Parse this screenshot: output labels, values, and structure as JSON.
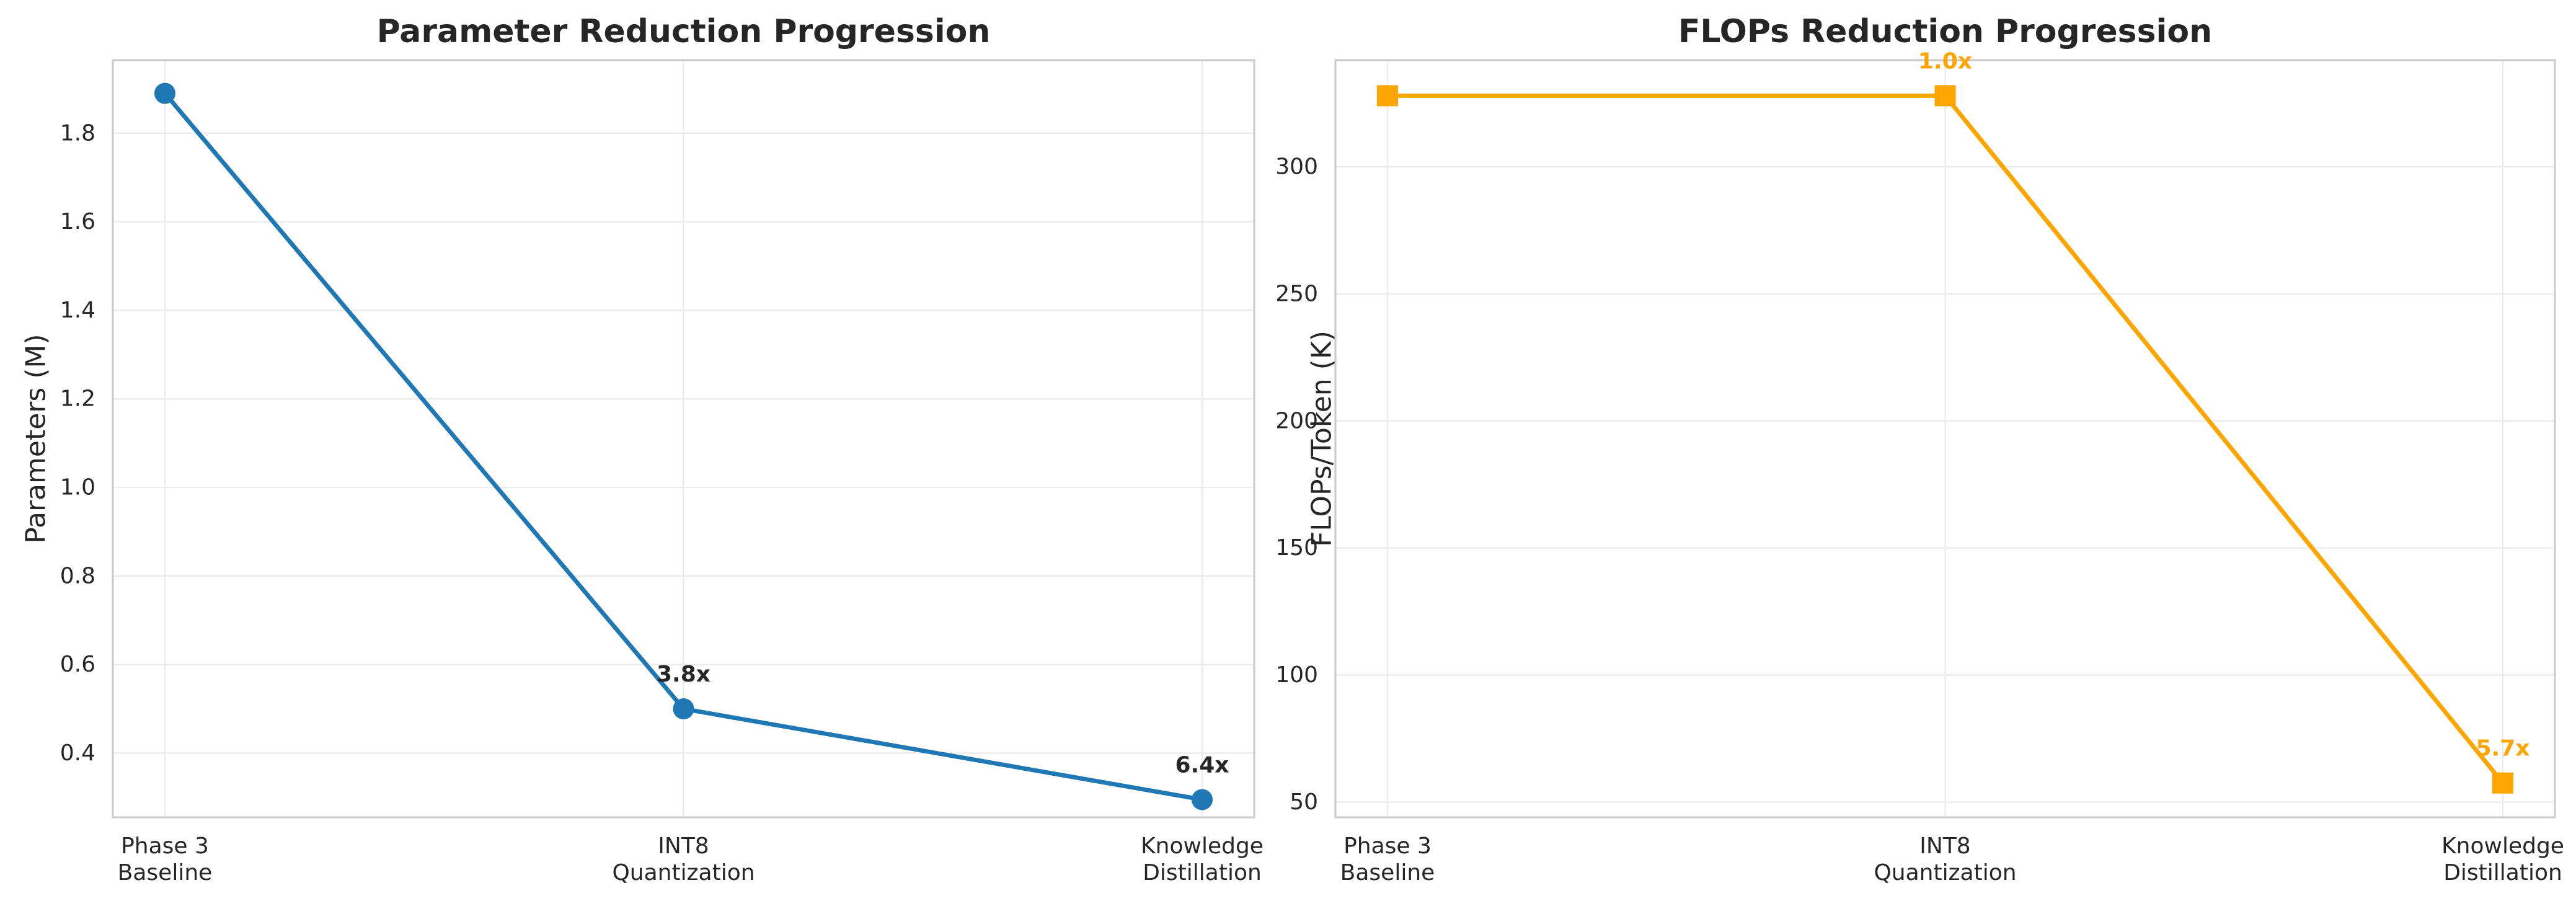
{
  "chart_data": [
    {
      "type": "line",
      "title": "Parameter Reduction Progression",
      "xlabel": "",
      "ylabel": "Parameters (M)",
      "categories": [
        [
          "Phase 3",
          "Baseline"
        ],
        [
          "INT8",
          "Quantization"
        ],
        [
          "Knowledge",
          "Distillation"
        ]
      ],
      "series": [
        {
          "values": [
            1.89,
            0.5,
            0.295
          ],
          "color": "#1f77b4",
          "marker": "circle"
        }
      ],
      "annotations": [
        "",
        "3.8x",
        "6.4x"
      ],
      "annotation_color": "#262626",
      "ylim": [
        0.255,
        1.965
      ],
      "yticks": [
        0.4,
        0.6,
        0.8,
        1.0,
        1.2,
        1.4,
        1.6,
        1.8
      ],
      "ytick_labels": [
        "0.4",
        "0.6",
        "0.8",
        "1.0",
        "1.2",
        "1.4",
        "1.6",
        "1.8"
      ],
      "grid": true
    },
    {
      "type": "line",
      "title": "FLOPs Reduction Progression",
      "xlabel": "",
      "ylabel": "FLOPs/Token (K)",
      "categories": [
        [
          "Phase 3",
          "Baseline"
        ],
        [
          "INT8",
          "Quantization"
        ],
        [
          "Knowledge",
          "Distillation"
        ]
      ],
      "series": [
        {
          "values": [
            328,
            328,
            57.5
          ],
          "color": "#ffa500",
          "marker": "square"
        }
      ],
      "annotations": [
        "",
        "1.0x",
        "5.7x"
      ],
      "annotation_color": "#ffa500",
      "ylim": [
        44,
        342
      ],
      "yticks": [
        50,
        100,
        150,
        200,
        250,
        300
      ],
      "ytick_labels": [
        "50",
        "100",
        "150",
        "200",
        "250",
        "300"
      ],
      "grid": true
    }
  ]
}
